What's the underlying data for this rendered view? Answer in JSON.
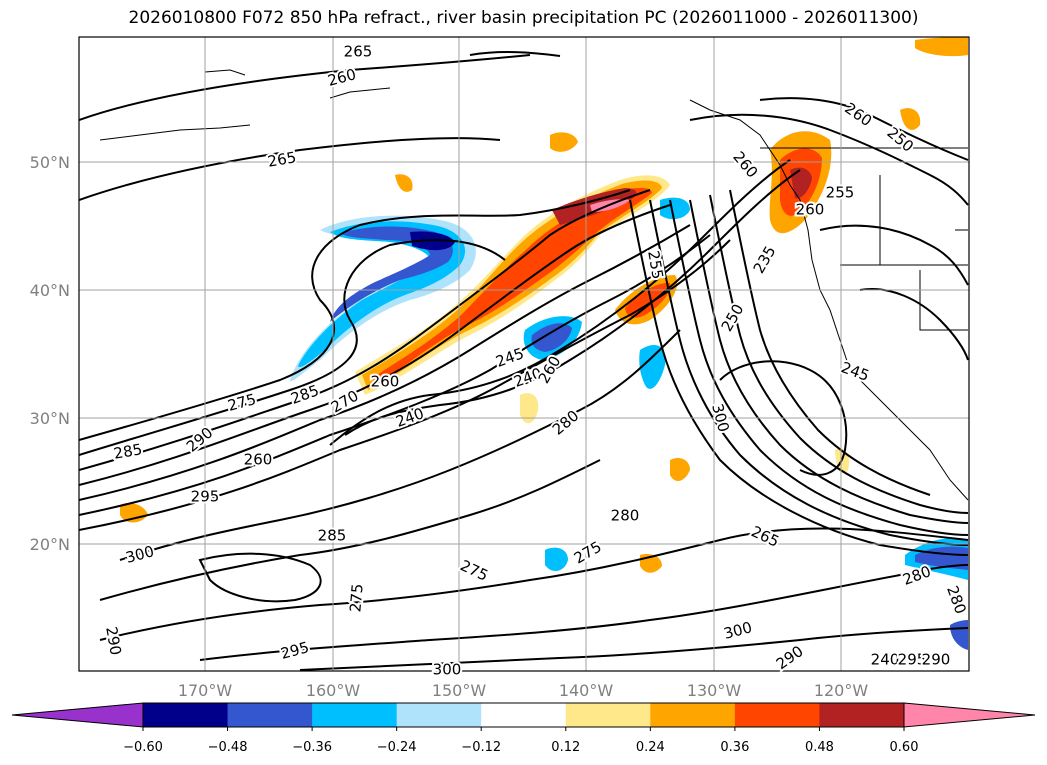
{
  "title": "2026010800 F072 850 hPa refract., river basin precipitation PC (2026011000 - 2026011300)",
  "map": {
    "lat_labels": [
      "50°N",
      "40°N",
      "30°N",
      "20°N"
    ],
    "lon_labels": [
      "170°W",
      "160°W",
      "150°W",
      "140°W",
      "130°W",
      "120°W"
    ],
    "contour_labels": [
      "265",
      "260",
      "265",
      "260",
      "250",
      "255",
      "260",
      "260",
      "255",
      "250",
      "245",
      "240",
      "285",
      "260",
      "275",
      "285",
      "270",
      "260",
      "240",
      "290",
      "260",
      "295",
      "300",
      "285",
      "275",
      "280",
      "280",
      "275",
      "275",
      "265",
      "280",
      "290",
      "300",
      "290",
      "295",
      "300",
      "300",
      "235",
      "245",
      "240",
      "295",
      "290",
      "280"
    ]
  },
  "colorbar": {
    "tick_labels": [
      "−0.60",
      "−0.48",
      "−0.36",
      "−0.24",
      "−0.12",
      "0.12",
      "0.24",
      "0.36",
      "0.48",
      "0.60"
    ],
    "colors": [
      "#9932cc",
      "#00008b",
      "#3457cf",
      "#00bfff",
      "#afe3fb",
      "#ffffff",
      "#ffe88a",
      "#ffa500",
      "#ff4500",
      "#b22222",
      "#ff85aa"
    ]
  }
}
